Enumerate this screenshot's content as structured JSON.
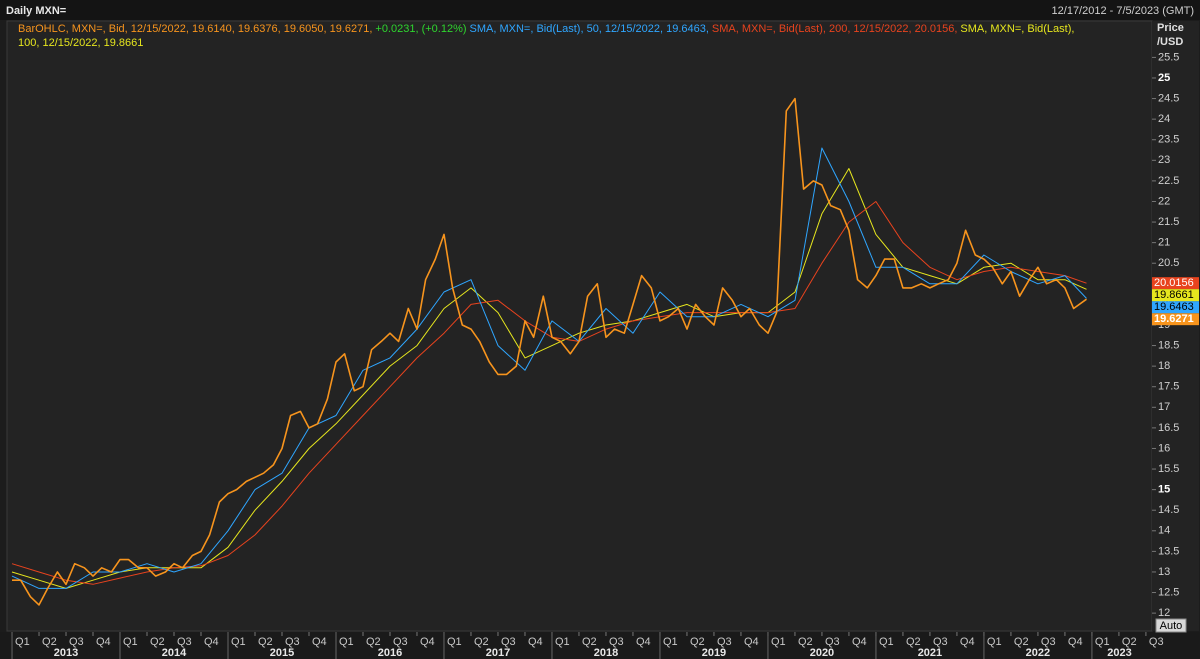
{
  "chart_data": {
    "type": "line",
    "title": "Daily MXN=",
    "date_range": "12/17/2012 - 7/5/2023 (GMT)",
    "y_label": [
      "Price",
      "/USD"
    ],
    "auto_button": "Auto",
    "xlim": [
      2012.96,
      2023.51
    ],
    "ylim": [
      11.59,
      26.36
    ],
    "yticks": [
      12,
      12.5,
      13,
      13.5,
      14,
      14.5,
      15,
      15.5,
      16,
      16.5,
      17,
      17.5,
      18,
      18.5,
      19,
      19.5,
      20,
      20.5,
      21,
      21.5,
      22,
      22.5,
      23,
      23.5,
      24,
      24.5,
      25,
      25.5
    ],
    "xticks": [
      {
        "value": 2013,
        "label": "Q1"
      },
      {
        "value": 2013.25,
        "label": "Q2"
      },
      {
        "value": 2013.5,
        "label": "Q3"
      },
      {
        "value": 2013.75,
        "label": "Q4"
      },
      {
        "value": 2014,
        "label": "Q1"
      },
      {
        "value": 2014.25,
        "label": "Q2"
      },
      {
        "value": 2014.5,
        "label": "Q3"
      },
      {
        "value": 2014.75,
        "label": "Q4"
      },
      {
        "value": 2015,
        "label": "Q1"
      },
      {
        "value": 2015.25,
        "label": "Q2"
      },
      {
        "value": 2015.5,
        "label": "Q3"
      },
      {
        "value": 2015.75,
        "label": "Q4"
      },
      {
        "value": 2016,
        "label": "Q1"
      },
      {
        "value": 2016.25,
        "label": "Q2"
      },
      {
        "value": 2016.5,
        "label": "Q3"
      },
      {
        "value": 2016.75,
        "label": "Q4"
      },
      {
        "value": 2017,
        "label": "Q1"
      },
      {
        "value": 2017.25,
        "label": "Q2"
      },
      {
        "value": 2017.5,
        "label": "Q3"
      },
      {
        "value": 2017.75,
        "label": "Q4"
      },
      {
        "value": 2018,
        "label": "Q1"
      },
      {
        "value": 2018.25,
        "label": "Q2"
      },
      {
        "value": 2018.5,
        "label": "Q3"
      },
      {
        "value": 2018.75,
        "label": "Q4"
      },
      {
        "value": 2019,
        "label": "Q1"
      },
      {
        "value": 2019.25,
        "label": "Q2"
      },
      {
        "value": 2019.5,
        "label": "Q3"
      },
      {
        "value": 2019.75,
        "label": "Q4"
      },
      {
        "value": 2020,
        "label": "Q1"
      },
      {
        "value": 2020.25,
        "label": "Q2"
      },
      {
        "value": 2020.5,
        "label": "Q3"
      },
      {
        "value": 2020.75,
        "label": "Q4"
      },
      {
        "value": 2021,
        "label": "Q1"
      },
      {
        "value": 2021.25,
        "label": "Q2"
      },
      {
        "value": 2021.5,
        "label": "Q3"
      },
      {
        "value": 2021.75,
        "label": "Q4"
      },
      {
        "value": 2022,
        "label": "Q1"
      },
      {
        "value": 2022.25,
        "label": "Q2"
      },
      {
        "value": 2022.5,
        "label": "Q3"
      },
      {
        "value": 2022.75,
        "label": "Q4"
      },
      {
        "value": 2023,
        "label": "Q1"
      },
      {
        "value": 2023.25,
        "label": "Q2"
      },
      {
        "value": 2023.5,
        "label": "Q3"
      }
    ],
    "years": [
      2013,
      2014,
      2015,
      2016,
      2017,
      2018,
      2019,
      2020,
      2021,
      2022,
      2023
    ],
    "grid": false,
    "series": [
      {
        "name": "BarOHLC, MXN=, Bid, 12/15/2022, 19.6140, 19.6376, 19.6050, 19.6271,",
        "change": "+0.0231, (+0.12%)",
        "change_color": "#2ed52e",
        "color": "#f7941d",
        "x": [
          2013.0,
          2013.08,
          2013.17,
          2013.25,
          2013.33,
          2013.42,
          2013.5,
          2013.58,
          2013.67,
          2013.75,
          2013.83,
          2013.92,
          2014.0,
          2014.08,
          2014.17,
          2014.25,
          2014.33,
          2014.42,
          2014.5,
          2014.58,
          2014.67,
          2014.75,
          2014.83,
          2014.92,
          2015.0,
          2015.08,
          2015.17,
          2015.25,
          2015.33,
          2015.42,
          2015.5,
          2015.58,
          2015.67,
          2015.75,
          2015.83,
          2015.92,
          2016.0,
          2016.08,
          2016.17,
          2016.25,
          2016.33,
          2016.42,
          2016.5,
          2016.58,
          2016.67,
          2016.75,
          2016.83,
          2016.92,
          2017.0,
          2017.08,
          2017.17,
          2017.25,
          2017.33,
          2017.42,
          2017.5,
          2017.58,
          2017.67,
          2017.75,
          2017.83,
          2017.92,
          2018.0,
          2018.08,
          2018.17,
          2018.25,
          2018.33,
          2018.42,
          2018.5,
          2018.58,
          2018.67,
          2018.75,
          2018.83,
          2018.92,
          2019.0,
          2019.08,
          2019.17,
          2019.25,
          2019.33,
          2019.42,
          2019.5,
          2019.58,
          2019.67,
          2019.75,
          2019.83,
          2019.92,
          2020.0,
          2020.08,
          2020.17,
          2020.25,
          2020.33,
          2020.42,
          2020.5,
          2020.58,
          2020.67,
          2020.75,
          2020.83,
          2020.92,
          2021.0,
          2021.08,
          2021.17,
          2021.25,
          2021.33,
          2021.42,
          2021.5,
          2021.58,
          2021.67,
          2021.75,
          2021.83,
          2021.92,
          2022.0,
          2022.08,
          2022.17,
          2022.25,
          2022.33,
          2022.42,
          2022.5,
          2022.58,
          2022.67,
          2022.75,
          2022.83,
          2022.95
        ],
        "values": [
          12.8,
          12.8,
          12.4,
          12.2,
          12.6,
          13.0,
          12.7,
          13.2,
          13.1,
          12.9,
          13.1,
          13.0,
          13.3,
          13.3,
          13.1,
          13.1,
          12.9,
          13.0,
          13.2,
          13.1,
          13.4,
          13.5,
          13.9,
          14.7,
          14.9,
          15.0,
          15.2,
          15.3,
          15.4,
          15.6,
          16.0,
          16.8,
          16.9,
          16.5,
          16.6,
          17.2,
          18.1,
          18.3,
          17.4,
          17.5,
          18.4,
          18.6,
          18.8,
          18.6,
          19.4,
          18.9,
          20.1,
          20.6,
          21.2,
          19.9,
          19.0,
          18.9,
          18.6,
          18.1,
          17.8,
          17.8,
          18.0,
          19.1,
          18.7,
          19.7,
          18.7,
          18.6,
          18.3,
          18.6,
          19.7,
          20.0,
          18.7,
          18.9,
          18.8,
          19.5,
          20.2,
          19.9,
          19.1,
          19.2,
          19.4,
          18.9,
          19.5,
          19.2,
          19.0,
          19.9,
          19.6,
          19.2,
          19.4,
          19.0,
          18.8,
          19.3,
          24.2,
          24.5,
          22.3,
          22.5,
          22.4,
          21.9,
          21.8,
          21.3,
          20.1,
          19.9,
          20.2,
          20.6,
          20.6,
          19.9,
          19.9,
          20.0,
          19.9,
          20.0,
          20.1,
          20.5,
          21.3,
          20.7,
          20.6,
          20.4,
          20.0,
          20.3,
          19.7,
          20.1,
          20.4,
          20.0,
          20.1,
          19.9,
          19.4,
          19.6271
        ]
      },
      {
        "name": "SMA, MXN=, Bid(Last), 50, 12/15/2022, 19.6463,",
        "color": "#2fa6ff",
        "badge_text": "#000000",
        "x": [
          2013,
          2013.25,
          2013.5,
          2013.75,
          2014,
          2014.25,
          2014.5,
          2014.75,
          2015,
          2015.25,
          2015.5,
          2015.75,
          2016,
          2016.25,
          2016.5,
          2016.75,
          2017,
          2017.25,
          2017.5,
          2017.75,
          2018,
          2018.25,
          2018.5,
          2018.75,
          2019,
          2019.25,
          2019.5,
          2019.75,
          2020,
          2020.25,
          2020.5,
          2020.75,
          2021,
          2021.25,
          2021.5,
          2021.75,
          2022,
          2022.25,
          2022.5,
          2022.75,
          2022.95
        ],
        "values": [
          12.9,
          12.6,
          12.6,
          13.0,
          13.0,
          13.2,
          13.0,
          13.2,
          14.0,
          15.0,
          15.4,
          16.5,
          16.8,
          17.9,
          18.2,
          18.9,
          19.8,
          20.1,
          18.5,
          17.9,
          19.1,
          18.6,
          19.4,
          18.8,
          19.8,
          19.2,
          19.2,
          19.5,
          19.2,
          19.6,
          23.3,
          22.0,
          20.4,
          20.4,
          20.0,
          20.0,
          20.7,
          20.3,
          20.0,
          20.2,
          19.6463
        ]
      },
      {
        "name": "SMA, MXN=, Bid(Last), 200, 12/15/2022, 20.0156,",
        "color": "#e8431e",
        "badge_text": "#ffffff",
        "x": [
          2013,
          2013.25,
          2013.5,
          2013.75,
          2014,
          2014.25,
          2014.5,
          2014.75,
          2015,
          2015.25,
          2015.5,
          2015.75,
          2016,
          2016.25,
          2016.5,
          2016.75,
          2017,
          2017.25,
          2017.5,
          2017.75,
          2018,
          2018.25,
          2018.5,
          2018.75,
          2019,
          2019.25,
          2019.5,
          2019.75,
          2020,
          2020.25,
          2020.5,
          2020.75,
          2021,
          2021.25,
          2021.5,
          2021.75,
          2022,
          2022.25,
          2022.5,
          2022.75,
          2022.95
        ],
        "values": [
          13.2,
          13.0,
          12.8,
          12.7,
          12.85,
          13.0,
          13.1,
          13.15,
          13.4,
          13.9,
          14.6,
          15.4,
          16.1,
          16.8,
          17.5,
          18.2,
          18.8,
          19.5,
          19.6,
          19.1,
          18.7,
          18.6,
          18.9,
          19.1,
          19.2,
          19.3,
          19.3,
          19.3,
          19.3,
          19.4,
          20.5,
          21.5,
          22.0,
          21.0,
          20.4,
          20.1,
          20.3,
          20.4,
          20.3,
          20.2,
          20.0156
        ]
      },
      {
        "name": "SMA, MXN=, Bid(Last), 100, 12/15/2022, 19.8661",
        "color": "#e6e61e",
        "badge_text": "#000000",
        "x": [
          2013,
          2013.25,
          2013.5,
          2013.75,
          2014,
          2014.25,
          2014.5,
          2014.75,
          2015,
          2015.25,
          2015.5,
          2015.75,
          2016,
          2016.25,
          2016.5,
          2016.75,
          2017,
          2017.25,
          2017.5,
          2017.75,
          2018,
          2018.25,
          2018.5,
          2018.75,
          2019,
          2019.25,
          2019.5,
          2019.75,
          2020,
          2020.25,
          2020.5,
          2020.75,
          2021,
          2021.25,
          2021.5,
          2021.75,
          2022,
          2022.25,
          2022.5,
          2022.75,
          2022.95
        ],
        "values": [
          13.0,
          12.8,
          12.6,
          12.8,
          13.0,
          13.1,
          13.1,
          13.1,
          13.6,
          14.5,
          15.2,
          16.0,
          16.6,
          17.3,
          18.0,
          18.5,
          19.4,
          19.9,
          19.3,
          18.2,
          18.5,
          18.8,
          19.0,
          19.1,
          19.3,
          19.5,
          19.2,
          19.3,
          19.3,
          19.8,
          21.7,
          22.8,
          21.2,
          20.4,
          20.2,
          20.0,
          20.4,
          20.5,
          20.1,
          20.1,
          19.8661
        ]
      }
    ]
  }
}
